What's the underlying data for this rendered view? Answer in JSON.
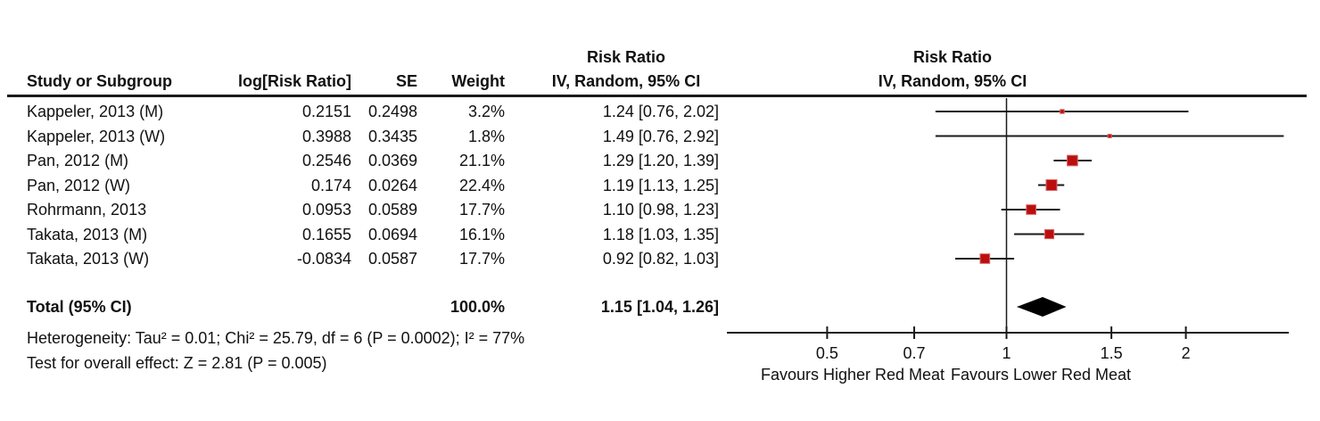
{
  "table": {
    "headers": {
      "study": "Study or Subgroup",
      "log_rr": "log[Risk Ratio]",
      "se": "SE",
      "weight": "Weight",
      "rr_line1": "Risk Ratio",
      "rr_line2": "IV, Random, 95% CI"
    },
    "total": {
      "label": "Total (95% CI)",
      "weight": "100.0%",
      "rr_text": "1.15 [1.04, 1.26]"
    },
    "footer": [
      "Heterogeneity: Tau² = 0.01; Chi² = 25.79, df = 6 (P = 0.0002); I² = 77%",
      "Test for overall effect: Z = 2.81 (P = 0.005)"
    ]
  },
  "plot": {
    "header_line1": "Risk Ratio",
    "header_line2": "IV, Random, 95% CI",
    "favours_left": "Favours Higher Red Meat",
    "favours_right": "Favours Lower Red Meat"
  },
  "chart_data": {
    "type": "forest",
    "x_scale": "log",
    "null_line_value": 1,
    "axis_ticks": [
      0.5,
      0.7,
      1,
      1.5,
      2
    ],
    "axis_range": [
      0.34,
      2.98
    ],
    "studies": [
      {
        "name": "Kappeler, 2013 (M)",
        "log_rr": "0.2151",
        "se": "0.2498",
        "weight_text": "3.2%",
        "weight_pct": 3.2,
        "rr": 1.24,
        "ci_low": 0.76,
        "ci_high": 2.02,
        "rr_text": "1.24 [0.76, 2.02]"
      },
      {
        "name": "Kappeler, 2013 (W)",
        "log_rr": "0.3988",
        "se": "0.3435",
        "weight_text": "1.8%",
        "weight_pct": 1.8,
        "rr": 1.49,
        "ci_low": 0.76,
        "ci_high": 2.92,
        "rr_text": "1.49 [0.76, 2.92]"
      },
      {
        "name": "Pan, 2012 (M)",
        "log_rr": "0.2546",
        "se": "0.0369",
        "weight_text": "21.1%",
        "weight_pct": 21.1,
        "rr": 1.29,
        "ci_low": 1.2,
        "ci_high": 1.39,
        "rr_text": "1.29 [1.20, 1.39]"
      },
      {
        "name": "Pan, 2012 (W)",
        "log_rr": "0.174",
        "se": "0.0264",
        "weight_text": "22.4%",
        "weight_pct": 22.4,
        "rr": 1.19,
        "ci_low": 1.13,
        "ci_high": 1.25,
        "rr_text": "1.19 [1.13, 1.25]"
      },
      {
        "name": "Rohrmann, 2013",
        "log_rr": "0.0953",
        "se": "0.0589",
        "weight_text": "17.7%",
        "weight_pct": 17.7,
        "rr": 1.1,
        "ci_low": 0.98,
        "ci_high": 1.23,
        "rr_text": "1.10 [0.98, 1.23]"
      },
      {
        "name": "Takata, 2013 (M)",
        "log_rr": "0.1655",
        "se": "0.0694",
        "weight_text": "16.1%",
        "weight_pct": 16.1,
        "rr": 1.18,
        "ci_low": 1.03,
        "ci_high": 1.35,
        "rr_text": "1.18 [1.03, 1.35]"
      },
      {
        "name": "Takata, 2013 (W)",
        "log_rr": "-0.0834",
        "se": "0.0587",
        "weight_text": "17.7%",
        "weight_pct": 17.7,
        "rr": 0.92,
        "ci_low": 0.82,
        "ci_high": 1.03,
        "rr_text": "0.92 [0.82, 1.03]"
      }
    ],
    "total": {
      "name": "Total (95% CI)",
      "weight_pct": 100.0,
      "rr": 1.15,
      "ci_low": 1.04,
      "ci_high": 1.26,
      "rr_text": "1.15 [1.04, 1.26]"
    },
    "heterogeneity": "Tau² = 0.01; Chi² = 25.79, df = 6 (P = 0.0002); I² = 77%",
    "overall_effect_test": "Z = 2.81 (P = 0.005)",
    "xlabel_left": "Favours Higher Red Meat",
    "xlabel_right": "Favours Lower Red Meat"
  },
  "colors": {
    "marker_fill": "#bb0f0f",
    "marker_edge": "#d96a6a",
    "diamond": "#000000",
    "line": "#1a1a1a",
    "text": "#111111"
  }
}
